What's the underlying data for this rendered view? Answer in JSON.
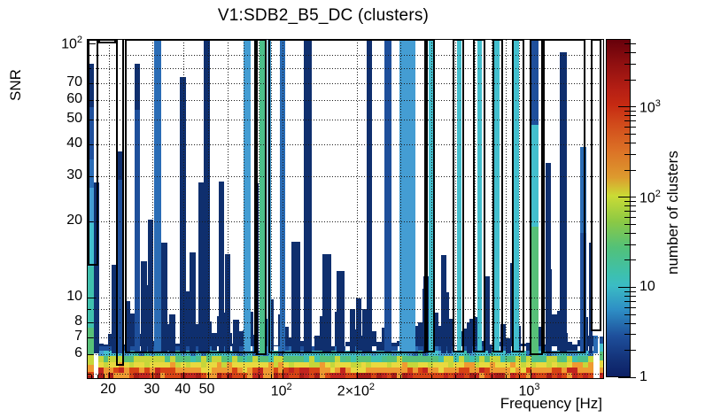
{
  "title": "V1:SDB2_B5_DC (clusters)",
  "chart_data": {
    "type": "heatmap",
    "title": "V1:SDB2_B5_DC (clusters)",
    "xlabel": "Frequency [Hz]",
    "ylabel": "SNR",
    "colorbar_label": "number of clusters",
    "x_scale": "log",
    "y_scale": "log",
    "z_scale": "log",
    "xlim": [
      16.4,
      1972
    ],
    "ylim": [
      4.82,
      103.3
    ],
    "zlim": [
      1,
      5600
    ],
    "grid": "dotted",
    "x_tick_labels": [
      {
        "t": "20",
        "f": 20
      },
      {
        "t": "30",
        "f": 30
      },
      {
        "t": "40",
        "f": 40
      },
      {
        "t": "50",
        "f": 50
      },
      {
        "t": "10",
        "e": "2",
        "f": 100
      },
      {
        "t": "2×10",
        "e": "2",
        "f": 200
      },
      {
        "t": "10",
        "e": "3",
        "f": 1000
      }
    ],
    "y_tick_labels": [
      {
        "t": "10",
        "e": "2",
        "s": 100
      },
      {
        "t": "70",
        "s": 70
      },
      {
        "t": "60",
        "s": 60
      },
      {
        "t": "50",
        "s": 50
      },
      {
        "t": "40",
        "s": 40
      },
      {
        "t": "30",
        "s": 30
      },
      {
        "t": "20",
        "s": 20
      },
      {
        "t": "10",
        "s": 10
      },
      {
        "t": "8",
        "s": 8
      },
      {
        "t": "7",
        "s": 7
      },
      {
        "t": "6",
        "s": 6
      }
    ],
    "x_grid": [
      20,
      30,
      40,
      50,
      60,
      70,
      80,
      90,
      100,
      200,
      300,
      400,
      500,
      600,
      700,
      800,
      900,
      1000
    ],
    "y_grid": [
      5,
      6,
      7,
      8,
      9,
      10,
      20,
      30,
      40,
      50,
      60,
      70,
      80,
      90
    ],
    "x_minor_ticks": [
      17,
      18,
      19
    ],
    "colorbar_tick_labels": [
      {
        "t": "10",
        "e": "3",
        "c": 1000
      },
      {
        "t": "10",
        "e": "2",
        "c": 100
      },
      {
        "t": "10",
        "c": 10
      },
      {
        "t": "1",
        "c": 1
      }
    ],
    "colorbar_gradient": [
      [
        0.0,
        "#0c2065"
      ],
      [
        0.042,
        "#122e74"
      ],
      [
        0.12,
        "#1e4f9b"
      ],
      [
        0.199,
        "#2e8fc5"
      ],
      [
        0.27,
        "#3bbcc4"
      ],
      [
        0.304,
        "#3dc0ae"
      ],
      [
        0.382,
        "#52c179"
      ],
      [
        0.461,
        "#8cc944"
      ],
      [
        0.537,
        "#cbdb35"
      ],
      [
        0.592,
        "#dd9a2e"
      ],
      [
        0.67,
        "#dc7226"
      ],
      [
        0.749,
        "#d14b1b"
      ],
      [
        0.806,
        "#c62a12"
      ],
      [
        0.853,
        "#b51f14"
      ],
      [
        0.932,
        "#8e0f10"
      ],
      [
        1.0,
        "#67000a"
      ]
    ],
    "palette": {
      "navy": "#0f2f6e",
      "blue": "#1e4f9b",
      "mblue": "#2a6cb5",
      "lblue": "#449dd3",
      "cyan": "#43bfce",
      "teal": "#3fc0ad",
      "green": "#57c078",
      "tealgreen": "#4cc08a",
      "ygreen": "#c6d63a",
      "yellow": "#e8d93f",
      "orange": "#ef9a31",
      "red": "#d84315",
      "red2": "#c2251f",
      "red3": "#a81b17"
    },
    "lines": [
      {
        "f1": 17.4,
        "f2": 18.3,
        "snr": 28.4,
        "color": "navy"
      },
      {
        "f1": 20.5,
        "f2": 21.5,
        "snr": 13.5,
        "color": "navy"
      },
      {
        "f1": 21.6,
        "f2": 22.8,
        "snr": 37.6,
        "segs": [
          [
            37.6,
            29,
            "navy"
          ],
          [
            29,
            6.05,
            "blue"
          ]
        ]
      },
      {
        "f1": 23.2,
        "f2": 24.4,
        "snr": 9.7,
        "color": "navy"
      },
      {
        "f1": 25.3,
        "f2": 26.7,
        "snr": 83,
        "segs": [
          [
            83,
            55,
            "navy"
          ],
          [
            55,
            6.05,
            "blue"
          ]
        ]
      },
      {
        "f1": 26.8,
        "f2": 28.5,
        "snr": 13.9,
        "color": "navy"
      },
      {
        "f1": 28.8,
        "f2": 30.2,
        "snr": 20.3,
        "color": "navy"
      },
      {
        "f1": 30.4,
        "f2": 32.4,
        "snr": 103.3,
        "color": "mblue"
      },
      {
        "f1": 32.4,
        "f2": 34.4,
        "snr": 16.5,
        "color": "navy"
      },
      {
        "f1": 35.0,
        "f2": 37.1,
        "snr": 8.6,
        "color": "navy"
      },
      {
        "f1": 38.7,
        "f2": 40.8,
        "snr": 74,
        "color": "navy"
      },
      {
        "f1": 42.3,
        "f2": 44.9,
        "snr": 15.1,
        "color": "navy"
      },
      {
        "f1": 45.7,
        "f2": 48.1,
        "snr": 28.4,
        "color": "navy"
      },
      {
        "f1": 48.1,
        "f2": 50.9,
        "snr": 103.3,
        "color": "navy"
      },
      {
        "f1": 55.2,
        "f2": 58.4,
        "snr": 28.6,
        "color": "navy"
      },
      {
        "f1": 58.7,
        "f2": 61.6,
        "snr": 14.8,
        "color": "navy"
      },
      {
        "f1": 63.1,
        "f2": 67.0,
        "snr": 8.2,
        "color": "navy"
      },
      {
        "f1": 69.7,
        "f2": 74.3,
        "snr": 103.3,
        "color": "lblue"
      },
      {
        "f1": 77.3,
        "f2": 80.6,
        "snr": 28.2,
        "color": "navy"
      },
      {
        "f1": 81.2,
        "f2": 84.9,
        "snr": 103.3,
        "color": "tealgreen"
      },
      {
        "f1": 87.4,
        "f2": 90.3,
        "snr": 103.3,
        "color": "lblue"
      },
      {
        "f1": 97.8,
        "f2": 102.7,
        "snr": 103.3,
        "color": "mblue"
      },
      {
        "f1": 108.8,
        "f2": 117.8,
        "snr": 16.6,
        "color": "navy"
      },
      {
        "f1": 121.7,
        "f2": 131.9,
        "snr": 103.3,
        "color": "navy"
      },
      {
        "f1": 145.7,
        "f2": 157.9,
        "snr": 14.8,
        "color": "navy"
      },
      {
        "f1": 165.6,
        "f2": 177.9,
        "snr": 12.7,
        "color": "navy"
      },
      {
        "f1": 186.8,
        "f2": 196.6,
        "snr": 9.0,
        "color": "navy"
      },
      {
        "f1": 209.4,
        "f2": 219.7,
        "snr": 9.0,
        "color": "navy"
      },
      {
        "f1": 219.7,
        "f2": 230.6,
        "snr": 103.3,
        "color": "navy"
      },
      {
        "f1": 258.3,
        "f2": 275.6,
        "snr": 103.3,
        "color": "blue"
      },
      {
        "f1": 296.3,
        "f2": 343.5,
        "snr": 103.3,
        "color": "lblue"
      },
      {
        "f1": 371.3,
        "f2": 390.3,
        "snr": 12.1,
        "color": "navy"
      },
      {
        "f1": 390.3,
        "f2": 410.3,
        "snr": 103.3,
        "color": "cyan"
      },
      {
        "f1": 437,
        "f2": 459.6,
        "snr": 14.7,
        "color": "navy"
      },
      {
        "f1": 463.4,
        "f2": 482.7,
        "snr": 7.6,
        "color": "navy"
      },
      {
        "f1": 506.6,
        "f2": 527.7,
        "snr": 103.3,
        "color": "cyan"
      },
      {
        "f1": 557,
        "f2": 585.7,
        "snr": 8.0,
        "color": "navy"
      },
      {
        "f1": 611,
        "f2": 636.6,
        "snr": 103.3,
        "color": "cyan"
      },
      {
        "f1": 674,
        "f2": 702,
        "snr": 6.5,
        "color": "navy"
      },
      {
        "f1": 719,
        "f2": 755,
        "snr": 103.3,
        "color": "cyan"
      },
      {
        "f1": 796,
        "f2": 835,
        "snr": 6.5,
        "color": "navy"
      },
      {
        "f1": 862,
        "f2": 905,
        "snr": 103.3,
        "color": "cyan"
      },
      {
        "f1": 1013,
        "f2": 1081,
        "snr": 103.3,
        "segs": [
          [
            103.3,
            48,
            "blue"
          ],
          [
            48,
            19,
            "cyan"
          ],
          [
            19,
            5.9,
            "green"
          ]
        ]
      },
      {
        "f1": 1155,
        "f2": 1213,
        "snr": 34,
        "color": "navy"
      },
      {
        "f1": 1318,
        "f2": 1406,
        "snr": 92,
        "color": "navy"
      },
      {
        "f1": 1596,
        "f2": 1686,
        "snr": 39,
        "segs": [
          [
            39,
            18,
            "mblue"
          ],
          [
            18,
            6.05,
            "blue"
          ]
        ]
      },
      {
        "f1": 1723,
        "f2": 1793,
        "snr": 16.5,
        "color": "navy"
      },
      {
        "f1": 1806,
        "f2": 1881,
        "snr": 7.1,
        "color": "mblue"
      }
    ],
    "edge_columns": [
      {
        "f1": 16.4,
        "f2": 17.35,
        "segs": [
          [
            83,
            56,
            "navy"
          ],
          [
            56,
            35,
            "blue"
          ],
          [
            35,
            27,
            "mblue"
          ],
          [
            27,
            19.6,
            "lblue"
          ],
          [
            19.6,
            13.2,
            "cyan"
          ],
          [
            13.2,
            7.6,
            "teal"
          ],
          [
            7.6,
            5.95,
            "green"
          ],
          [
            5.95,
            5.42,
            "ygreen"
          ],
          [
            5.42,
            5.1,
            "orange"
          ],
          [
            5.1,
            4.92,
            "red"
          ],
          [
            4.92,
            4.82,
            "red3"
          ]
        ]
      },
      {
        "f1": 1900,
        "f2": 1972,
        "segs": [
          [
            7.05,
            6.6,
            "blue"
          ],
          [
            6.6,
            6.15,
            "cyan"
          ],
          [
            6.15,
            5.66,
            "green"
          ],
          [
            5.66,
            5.33,
            "yellow"
          ],
          [
            5.33,
            5.07,
            "orange"
          ],
          [
            5.07,
            4.82,
            "red2"
          ]
        ]
      }
    ],
    "veto_boxes": [
      {
        "f1": 16.4,
        "f2": 18.1,
        "s1": 13.4,
        "s2": 103.3
      },
      {
        "f1": 18.1,
        "f2": 21.4,
        "s1": 100.3,
        "s2": 103.3
      },
      {
        "f1": 21.4,
        "f2": 23.0,
        "s1": 5.4,
        "s2": 103.3,
        "noTop": true
      },
      {
        "f1": 23.2,
        "f2": 78.1,
        "s1": 6.05,
        "s2": 103.3
      },
      {
        "f1": 78.1,
        "f2": 86.6,
        "s1": 5.93,
        "s2": 103.3
      },
      {
        "f1": 88.1,
        "f2": 380,
        "s1": 6.05,
        "s2": 103.3
      },
      {
        "f1": 380,
        "f2": 413,
        "s1": 6.1,
        "s2": 103.3
      },
      {
        "f1": 488,
        "f2": 543,
        "s1": 6.1,
        "s2": 103.3
      },
      {
        "f1": 588,
        "f2": 657,
        "s1": 6.1,
        "s2": 103.3
      },
      {
        "f1": 706,
        "f2": 781,
        "s1": 6.1,
        "s2": 103.3
      },
      {
        "f1": 842,
        "f2": 949,
        "s1": 6.1,
        "s2": 103.3
      },
      {
        "f1": 997,
        "f2": 1125,
        "s1": 5.93,
        "s2": 103.3
      },
      {
        "f1": 1125,
        "f2": 1668,
        "s1": 6.05,
        "s2": 103.3
      },
      {
        "f1": 1755,
        "f2": 1949,
        "s1": 7.35,
        "s2": 103.3
      }
    ],
    "band": {
      "seed": 987654321,
      "n_cols": 100,
      "rows": [
        {
          "s1": 4.82,
          "s2": 5.05,
          "palette": [
            "red",
            "red2",
            "red3",
            "red",
            "red2",
            "orange"
          ]
        },
        {
          "s1": 5.05,
          "s2": 5.3,
          "palette": [
            "orange",
            "orange",
            "red",
            "yellow",
            "orange",
            "red2"
          ]
        },
        {
          "s1": 5.3,
          "s2": 5.57,
          "palette": [
            "yellow",
            "ygreen",
            "yellow",
            "orange",
            "ygreen",
            "yellow"
          ]
        },
        {
          "s1": 5.57,
          "s2": 5.87,
          "palette": [
            "green",
            "ygreen",
            "tealgreen",
            "green",
            "ygreen",
            "teal"
          ]
        },
        {
          "s1": 5.87,
          "s2": 6.16,
          "palette": [
            "cyan",
            "lblue",
            "teal",
            "cyan",
            "mblue",
            "cyan"
          ]
        },
        {
          "s1": 6.16,
          "s2": 6.44,
          "palette": [
            "blue",
            "mblue",
            "navy",
            "blue"
          ],
          "p": 0.78
        }
      ],
      "noise_color": "navy"
    }
  }
}
